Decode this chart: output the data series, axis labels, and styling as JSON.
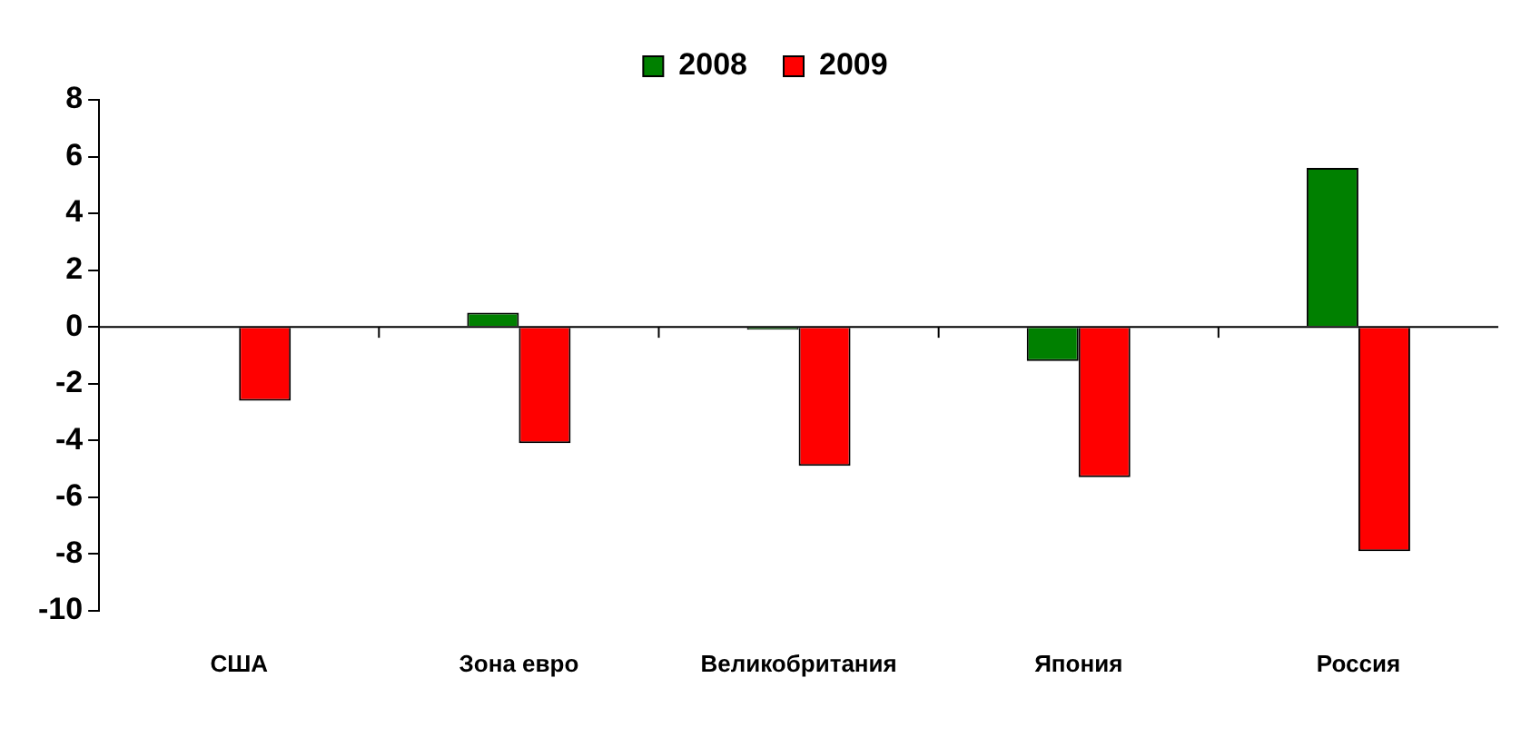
{
  "chart_data": {
    "type": "bar",
    "categories": [
      "США",
      "Зона евро",
      "Великобритания",
      "Япония",
      "Россия"
    ],
    "series": [
      {
        "name": "2008",
        "color": "#008000",
        "values": [
          0,
          0.5,
          -0.1,
          -1.2,
          5.6
        ]
      },
      {
        "name": "2009",
        "color": "#ff0000",
        "values": [
          -2.6,
          -4.1,
          -4.9,
          -5.3,
          -7.9
        ]
      }
    ],
    "ylim": [
      -10,
      8
    ],
    "yticks": [
      -10,
      -8,
      -6,
      -4,
      -2,
      0,
      2,
      4,
      6,
      8
    ],
    "legend": "top"
  }
}
